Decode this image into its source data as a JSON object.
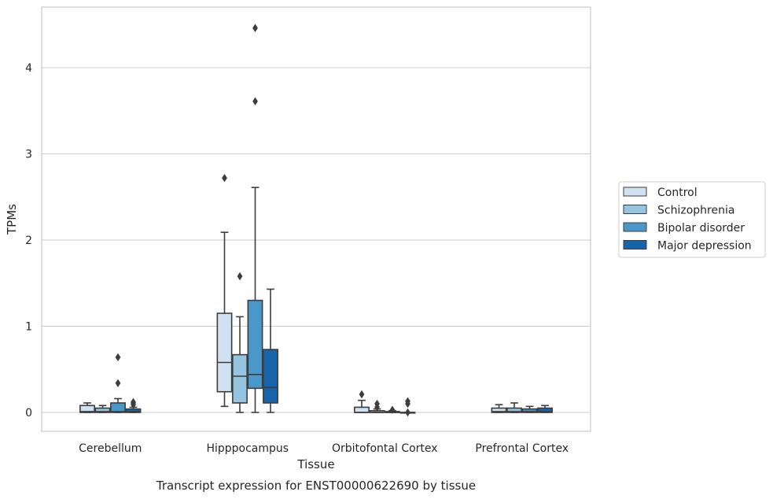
{
  "chart_data": {
    "type": "box",
    "xlabel": "Tissue",
    "ylabel": "TPMs",
    "caption": "Transcript expression for ENST00000622690 by tissue",
    "ylim": [
      -0.22,
      4.7
    ],
    "yticks": [
      0,
      1,
      2,
      3,
      4
    ],
    "categories": [
      "Cerebellum",
      "Hipppocampus",
      "Orbitofontal Cortex",
      "Prefrontal Cortex"
    ],
    "legend_position": "center-right",
    "grid": true,
    "series": [
      {
        "name": "Control",
        "color": "#d0e1f2",
        "boxes": [
          {
            "whislo": 0.0,
            "q1": 0.0,
            "med": 0.01,
            "q3": 0.08,
            "whishi": 0.11,
            "fliers": []
          },
          {
            "whislo": 0.07,
            "q1": 0.24,
            "med": 0.58,
            "q3": 1.15,
            "whishi": 2.09,
            "fliers": [
              2.72
            ]
          },
          {
            "whislo": 0.0,
            "q1": 0.0,
            "med": 0.0,
            "q3": 0.06,
            "whishi": 0.14,
            "fliers": [
              0.21
            ]
          },
          {
            "whislo": 0.0,
            "q1": 0.0,
            "med": 0.01,
            "q3": 0.05,
            "whishi": 0.09,
            "fliers": []
          }
        ]
      },
      {
        "name": "Schizophrenia",
        "color": "#94c4df",
        "boxes": [
          {
            "whislo": 0.0,
            "q1": 0.0,
            "med": 0.01,
            "q3": 0.05,
            "whishi": 0.08,
            "fliers": []
          },
          {
            "whislo": 0.0,
            "q1": 0.11,
            "med": 0.42,
            "q3": 0.67,
            "whishi": 1.11,
            "fliers": [
              1.58
            ]
          },
          {
            "whislo": 0.0,
            "q1": 0.0,
            "med": 0.0,
            "q3": 0.02,
            "whishi": 0.04,
            "fliers": [
              0.06,
              0.1
            ]
          },
          {
            "whislo": 0.0,
            "q1": 0.0,
            "med": 0.01,
            "q3": 0.05,
            "whishi": 0.11,
            "fliers": []
          }
        ]
      },
      {
        "name": "Bipolar disorder",
        "color": "#4a98c9",
        "boxes": [
          {
            "whislo": 0.0,
            "q1": 0.0,
            "med": 0.01,
            "q3": 0.11,
            "whishi": 0.16,
            "fliers": [
              0.34,
              0.64
            ]
          },
          {
            "whislo": 0.0,
            "q1": 0.28,
            "med": 0.44,
            "q3": 1.3,
            "whishi": 2.61,
            "fliers": [
              3.61,
              4.46
            ]
          },
          {
            "whislo": 0.0,
            "q1": 0.0,
            "med": 0.0,
            "q3": 0.01,
            "whishi": 0.02,
            "fliers": [
              0.03
            ]
          },
          {
            "whislo": 0.0,
            "q1": 0.0,
            "med": 0.01,
            "q3": 0.04,
            "whishi": 0.07,
            "fliers": []
          }
        ]
      },
      {
        "name": "Major depression",
        "color": "#1764ab",
        "boxes": [
          {
            "whislo": 0.0,
            "q1": 0.0,
            "med": 0.01,
            "q3": 0.04,
            "whishi": 0.06,
            "fliers": [
              0.09,
              0.11,
              0.12
            ]
          },
          {
            "whislo": 0.0,
            "q1": 0.11,
            "med": 0.29,
            "q3": 0.73,
            "whishi": 1.43,
            "fliers": []
          },
          {
            "whislo": 0.0,
            "q1": 0.0,
            "med": 0.0,
            "q3": 0.0,
            "whishi": 0.0,
            "fliers": [
              0.0,
              0.1,
              0.13
            ]
          },
          {
            "whislo": 0.0,
            "q1": 0.0,
            "med": 0.01,
            "q3": 0.05,
            "whishi": 0.08,
            "fliers": []
          }
        ]
      }
    ]
  }
}
